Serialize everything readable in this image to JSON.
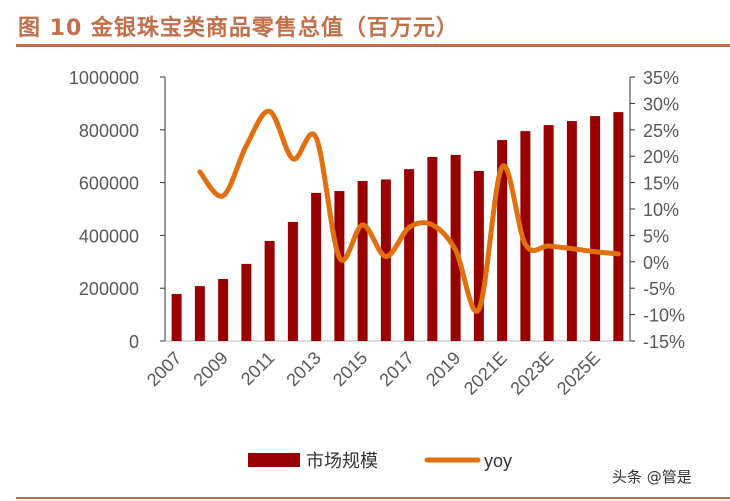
{
  "title": "图 10  金银珠宝类商品零售总值（百万元）",
  "watermark": "头条 @管是",
  "colors": {
    "bar": "#990000",
    "line": "#e07010",
    "title": "#c0704a"
  },
  "chart_data": {
    "type": "bar+line",
    "categories": [
      "2007",
      "2008",
      "2009",
      "2010",
      "2011",
      "2012",
      "2013",
      "2014",
      "2015",
      "2016",
      "2017",
      "2018",
      "2019",
      "2020",
      "2021E",
      "2022E",
      "2023E",
      "2024E",
      "2025E",
      "2026E"
    ],
    "x_tick_labels": [
      "2007",
      "2009",
      "2011",
      "2013",
      "2015",
      "2017",
      "2019",
      "2021E",
      "2023E",
      "2025E"
    ],
    "series": [
      {
        "name": "市场规模",
        "type": "bar",
        "axis": "left",
        "values": [
          178000,
          208000,
          235000,
          292000,
          379000,
          451000,
          561000,
          568000,
          606000,
          612000,
          651000,
          697000,
          705000,
          644000,
          761000,
          795000,
          818000,
          833000,
          852000,
          867000
        ]
      },
      {
        "name": "yoy",
        "type": "line",
        "axis": "right",
        "values": [
          null,
          17,
          12.5,
          22,
          28.5,
          19.5,
          23.5,
          0.8,
          7,
          1,
          6.5,
          7,
          2.2,
          -9,
          18,
          3.3,
          3,
          2.5,
          1.9,
          1.5
        ]
      }
    ],
    "left_axis": {
      "ylim": [
        0,
        1000000
      ],
      "ticks": [
        "0",
        "200000",
        "400000",
        "600000",
        "800000",
        "1000000"
      ]
    },
    "right_axis": {
      "ylim": [
        -15,
        35
      ],
      "ticks": [
        "-15%",
        "-10%",
        "-5%",
        "0%",
        "5%",
        "10%",
        "15%",
        "20%",
        "25%",
        "30%",
        "35%"
      ]
    },
    "legend": {
      "position": "bottom",
      "items": [
        "市场规模",
        "yoy"
      ]
    },
    "grid": false
  }
}
